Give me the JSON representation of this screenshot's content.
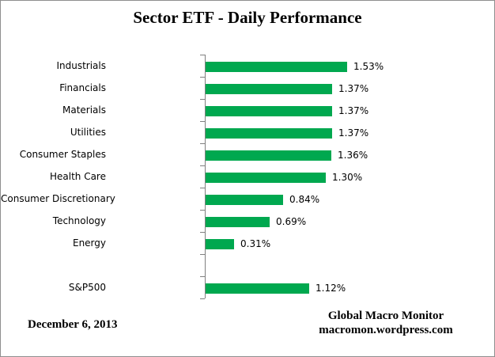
{
  "chart_data": {
    "type": "bar",
    "orientation": "horizontal",
    "title": "Sector ETF - Daily Performance",
    "categories": [
      "Industrials",
      "Financials",
      "Materials",
      "Utilities",
      "Consumer Staples",
      "Health Care",
      "Consumer Discretionary",
      "Technology",
      "Energy",
      "",
      "S&P500"
    ],
    "values": [
      1.53,
      1.37,
      1.37,
      1.37,
      1.36,
      1.3,
      0.84,
      0.69,
      0.31,
      null,
      1.12
    ],
    "value_labels": [
      "1.53%",
      "1.37%",
      "1.37%",
      "1.37%",
      "1.36%",
      "1.30%",
      "0.84%",
      "0.69%",
      "0.31%",
      "",
      "1.12%"
    ],
    "xlabel": "",
    "ylabel": "",
    "xlim": [
      0,
      1.6
    ],
    "grid": false,
    "legend": false,
    "bar_color": "#00A84F",
    "axis_color": "#808080"
  },
  "footer": {
    "date": "December 6, 2013",
    "source_line1": "Global Macro Monitor",
    "source_line2": "macromon.wordpress.com"
  }
}
